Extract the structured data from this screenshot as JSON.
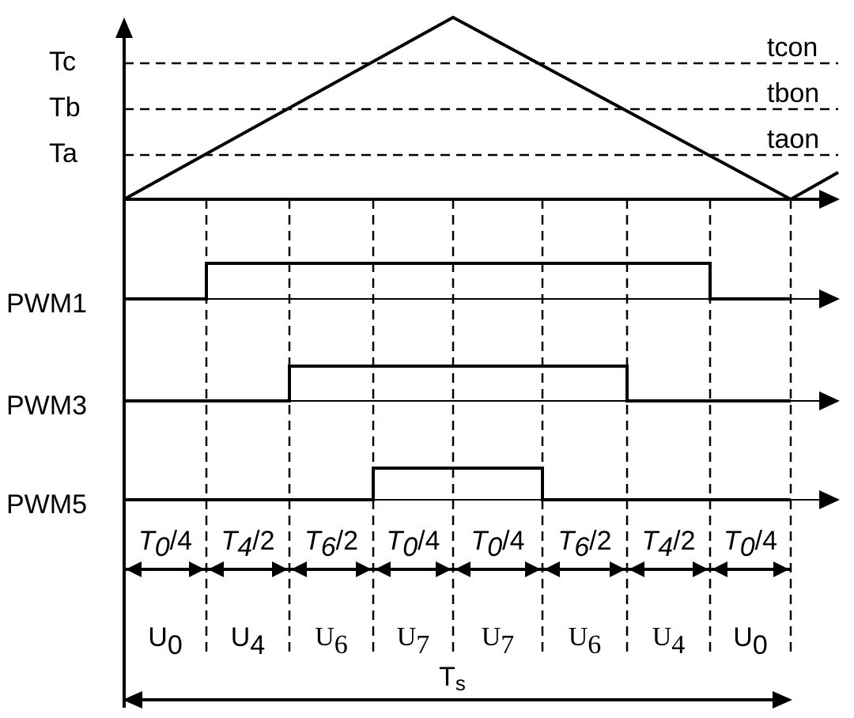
{
  "levels": [
    {
      "label": "Tc",
      "name": "tcon"
    },
    {
      "label": "Tb",
      "name": "tbon"
    },
    {
      "label": "Ta",
      "name": "taon"
    }
  ],
  "signals": [
    "PWM1",
    "PWM3",
    "PWM5"
  ],
  "intervals": [
    {
      "symbol": "T",
      "sub": "0",
      "divisor": "/4"
    },
    {
      "symbol": "T",
      "sub": "4",
      "divisor": "/2"
    },
    {
      "symbol": "T",
      "sub": "6",
      "divisor": "/2"
    },
    {
      "symbol": "T",
      "sub": "0",
      "divisor": "/4"
    },
    {
      "symbol": "T",
      "sub": "0",
      "divisor": "/4"
    },
    {
      "symbol": "T",
      "sub": "6",
      "divisor": "/2"
    },
    {
      "symbol": "T",
      "sub": "4",
      "divisor": "/2"
    },
    {
      "symbol": "T",
      "sub": "0",
      "divisor": "/4"
    }
  ],
  "vectors": [
    {
      "symbol": "U",
      "sub": "0"
    },
    {
      "symbol": "U",
      "sub": "4"
    },
    {
      "symbol": "U",
      "sub": "6"
    },
    {
      "symbol": "U",
      "sub": "7"
    },
    {
      "symbol": "U",
      "sub": "7"
    },
    {
      "symbol": "U",
      "sub": "6"
    },
    {
      "symbol": "U",
      "sub": "4"
    },
    {
      "symbol": "U",
      "sub": "0"
    }
  ],
  "period": {
    "symbol": "T",
    "sub": "s"
  }
}
